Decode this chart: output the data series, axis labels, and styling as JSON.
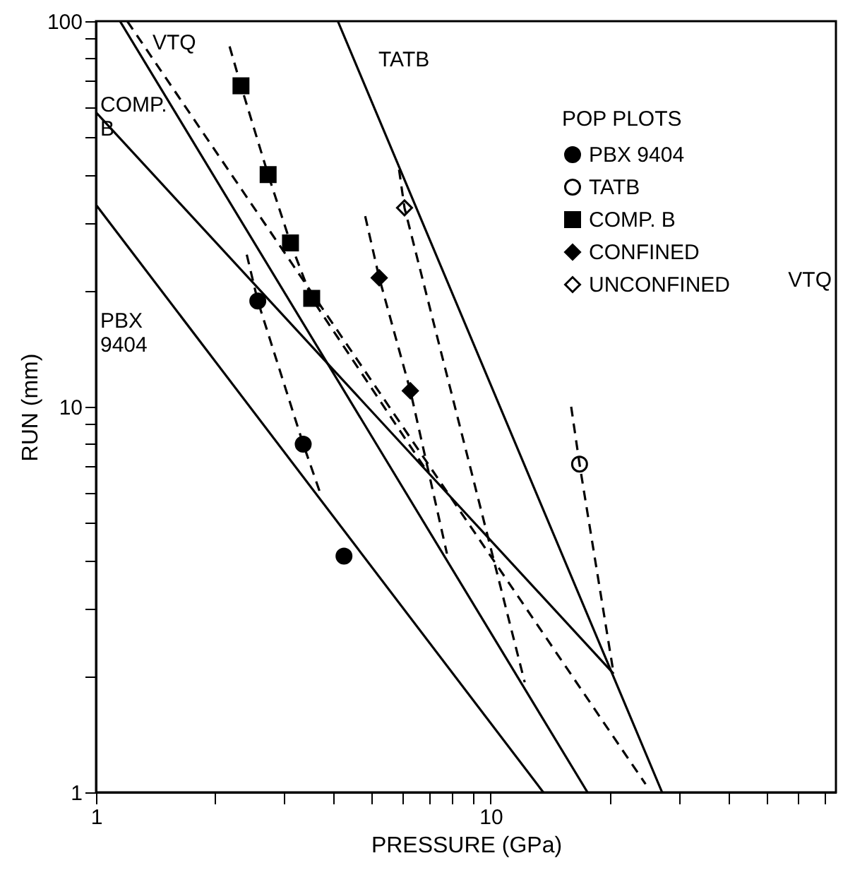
{
  "chart_data": {
    "type": "line",
    "xlabel": "PRESSURE (GPa)",
    "ylabel": "RUN (mm)",
    "legend_title": "POP PLOTS",
    "log": "xy",
    "grid": false,
    "legend": "top right",
    "line_style": "solid",
    "xlim": [
      1,
      75
    ],
    "ylim": [
      1,
      100
    ],
    "xticks": [
      1,
      {
        "value": 2,
        "label": null
      },
      {
        "value": 3,
        "label": null
      },
      {
        "value": 4,
        "label": null
      },
      {
        "value": 5,
        "label": null
      },
      {
        "value": 6,
        "label": null
      },
      {
        "value": 7,
        "label": null
      },
      {
        "value": 8,
        "label": null
      },
      {
        "value": 9,
        "label": null
      },
      10,
      {
        "value": 20,
        "label": null
      },
      {
        "value": 30,
        "label": null
      },
      {
        "value": 40,
        "label": null
      },
      {
        "value": 50,
        "label": null
      },
      {
        "value": 60,
        "label": null
      },
      {
        "value": 70,
        "label": null
      }
    ],
    "yticks": [
      1,
      {
        "value": 2,
        "label": null
      },
      {
        "value": 3,
        "label": null
      },
      {
        "value": 4,
        "label": null
      },
      {
        "value": 5,
        "label": null
      },
      {
        "value": 6,
        "label": null
      },
      {
        "value": 7,
        "label": null
      },
      {
        "value": 8,
        "label": null
      },
      {
        "value": 9,
        "label": null
      },
      10,
      {
        "value": 20,
        "label": null
      },
      {
        "value": 30,
        "label": null
      },
      {
        "value": 40,
        "label": null
      },
      {
        "value": 50,
        "label": null
      },
      {
        "value": 60,
        "label": null
      },
      {
        "value": 70,
        "label": null
      },
      {
        "value": 80,
        "label": null
      },
      {
        "value": 90,
        "label": null
      },
      100
    ],
    "series": [
      {
        "name": "PBX 9404",
        "type": "scatter",
        "marker": "circle",
        "color": "#000000",
        "x": [
          2.57,
          3.35,
          4.25
        ],
        "values": [
          18.8,
          8.0,
          4.1
        ]
      },
      {
        "name": "TATB",
        "type": "scatter",
        "marker": "circle",
        "color": "#ffffff",
        "x": [
          16.8
        ],
        "values": [
          7.1
        ]
      },
      {
        "name": "COMP. B",
        "type": "scatter",
        "marker": "square",
        "color": "#000000",
        "x": [
          2.33,
          2.73,
          3.11,
          3.52
        ],
        "values": [
          68,
          40,
          26.6,
          19.1
        ]
      },
      {
        "name": "CONFINED",
        "type": "scatter",
        "marker": "diamond",
        "color": "#000000",
        "x": [
          5.22,
          6.26
        ],
        "values": [
          21.6,
          11.0
        ]
      },
      {
        "name": "UNCONFINED",
        "type": "scatter",
        "marker": "diamond",
        "color": "#ffffff",
        "x": [
          6.05
        ],
        "values": [
          32.8
        ]
      },
      {
        "color": "#000000",
        "x": [
          1,
          13.6
        ],
        "values": [
          33.4,
          1
        ]
      },
      {
        "color": "#000000",
        "x": [
          1,
          20.5
        ],
        "values": [
          58,
          2.03
        ]
      },
      {
        "color": "#000000",
        "x": [
          4.1,
          27.2
        ],
        "values": [
          100,
          1
        ]
      },
      {
        "color": "#000000",
        "x": [
          1.15,
          17.6
        ],
        "values": [
          100,
          1
        ]
      },
      {
        "color": "#000000",
        "line_style": "dashed",
        "x": [
          1.2,
          24.7
        ],
        "values": [
          100,
          1.05
        ]
      },
      {
        "color": "#000000",
        "line_style": "dashed",
        "x": [
          2.41,
          2.57,
          3.35,
          3.73
        ],
        "values": [
          24.8,
          18.8,
          8.0,
          5.83
        ]
      },
      {
        "color": "#000000",
        "line_style": "dashed",
        "x": [
          2.18,
          2.33,
          2.73,
          3.11,
          3.52,
          6.9
        ],
        "values": [
          86,
          68,
          40,
          26.6,
          19.1,
          6.8
        ]
      },
      {
        "color": "#000000",
        "line_style": "dashed",
        "x": [
          4.81,
          5.22,
          6.26,
          7.75
        ],
        "values": [
          31.2,
          21.6,
          11.0,
          4.16
        ]
      },
      {
        "color": "#000000",
        "line_style": "dashed",
        "x": [
          5.86,
          6.05,
          12.2
        ],
        "values": [
          41.2,
          32.8,
          1.93
        ]
      },
      {
        "color": "#000000",
        "line_style": "dashed",
        "x": [
          16.0,
          16.8,
          20.5
        ],
        "values": [
          10.0,
          7.1,
          2.03
        ]
      }
    ],
    "annotations": [
      "VTQ",
      "TATB",
      "COMP. B",
      "PBX 9404",
      "VTQ"
    ]
  }
}
